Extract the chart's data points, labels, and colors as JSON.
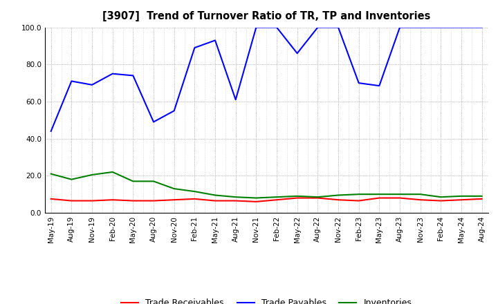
{
  "title": "[3907]  Trend of Turnover Ratio of TR, TP and Inventories",
  "x_labels": [
    "May-19",
    "Aug-19",
    "Nov-19",
    "Feb-20",
    "May-20",
    "Aug-20",
    "Nov-20",
    "Feb-21",
    "May-21",
    "Aug-21",
    "Nov-21",
    "Feb-22",
    "May-22",
    "Aug-22",
    "Nov-22",
    "Feb-23",
    "May-23",
    "Aug-23",
    "Nov-23",
    "Feb-24",
    "May-24",
    "Aug-24"
  ],
  "trade_receivables": [
    7.5,
    6.5,
    6.5,
    7.0,
    6.5,
    6.5,
    7.0,
    7.5,
    6.5,
    6.5,
    6.0,
    7.0,
    8.0,
    8.0,
    7.0,
    6.5,
    8.0,
    8.0,
    7.0,
    6.5,
    7.0,
    7.5
  ],
  "trade_payables": [
    44.0,
    71.0,
    69.0,
    75.0,
    74.0,
    49.0,
    55.0,
    89.0,
    93.0,
    61.0,
    100.0,
    100.0,
    86.0,
    100.0,
    100.0,
    70.0,
    68.5,
    100.0,
    100.0,
    100.0,
    100.0,
    100.0
  ],
  "inventories": [
    21.0,
    18.0,
    20.5,
    22.0,
    17.0,
    17.0,
    13.0,
    11.5,
    9.5,
    8.5,
    8.0,
    8.5,
    9.0,
    8.5,
    9.5,
    10.0,
    10.0,
    10.0,
    10.0,
    8.5,
    9.0,
    9.0
  ],
  "ylim": [
    0.0,
    100.0
  ],
  "yticks": [
    0.0,
    20.0,
    40.0,
    60.0,
    80.0,
    100.0
  ],
  "legend_labels": [
    "Trade Receivables",
    "Trade Payables",
    "Inventories"
  ],
  "line_colors": [
    "#ff0000",
    "#0000ff",
    "#008000"
  ],
  "background_color": "#ffffff",
  "grid_color": "#aaaaaa"
}
